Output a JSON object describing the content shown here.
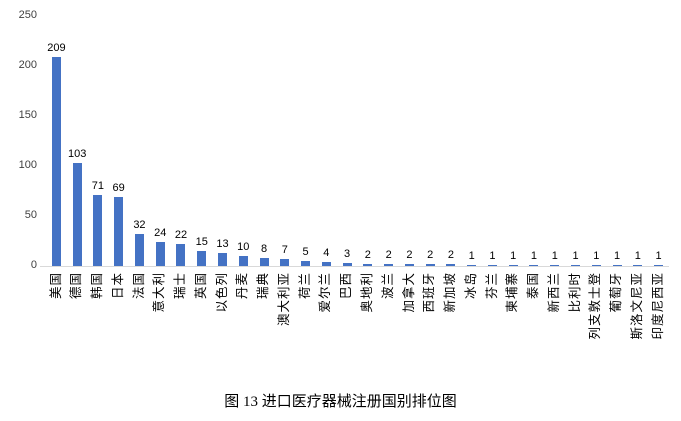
{
  "caption": "图 13 进口医疗器械注册国别排位图",
  "colors": {
    "bar": "#4472C4",
    "axis_line": "#D9D9D9",
    "tick_label": "#404040",
    "value_label": "#000000"
  },
  "chart_data": {
    "type": "bar",
    "title": "图 13 进口医疗器械注册国别排位图",
    "xlabel": "",
    "ylabel": "",
    "categories": [
      "美国",
      "德国",
      "韩国",
      "日本",
      "法国",
      "意大利",
      "瑞士",
      "英国",
      "以色列",
      "丹麦",
      "瑞典",
      "澳大利亚",
      "荷兰",
      "爱尔兰",
      "巴西",
      "奥地利",
      "波兰",
      "加拿大",
      "西班牙",
      "新加坡",
      "冰岛",
      "芬兰",
      "柬埔寨",
      "泰国",
      "新西兰",
      "比利时",
      "列支敦士登",
      "葡萄牙",
      "斯洛文尼亚",
      "印度尼西亚"
    ],
    "values": [
      209,
      103,
      71,
      69,
      32,
      24,
      22,
      15,
      13,
      10,
      8,
      7,
      5,
      4,
      3,
      2,
      2,
      2,
      2,
      2,
      1,
      1,
      1,
      1,
      1,
      1,
      1,
      1,
      1,
      1
    ],
    "value_labels_shown": true,
    "ylim": [
      0,
      250
    ],
    "yticks": [
      0,
      50,
      100,
      150,
      200,
      250
    ],
    "grid": false,
    "legend": "none",
    "x_label_rotation": "vertical"
  }
}
